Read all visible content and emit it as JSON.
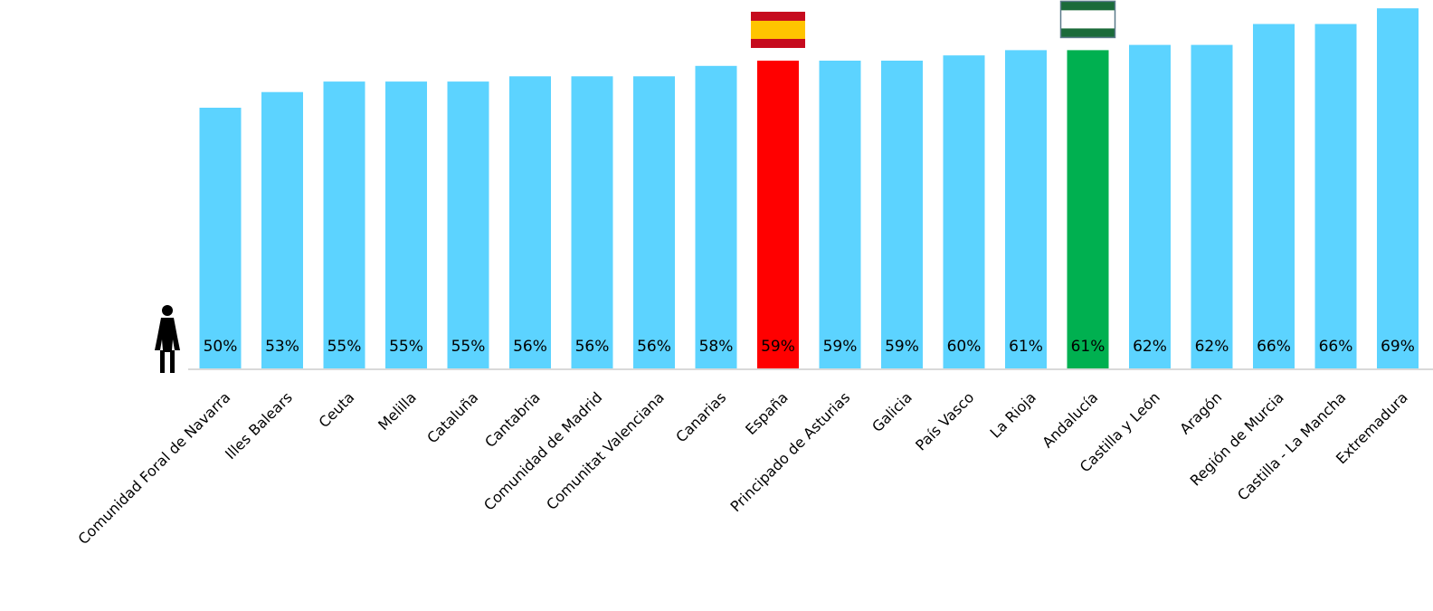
{
  "chart_data": {
    "type": "bar",
    "title": "",
    "xlabel": "",
    "ylabel": "",
    "ylim": [
      0,
      100
    ],
    "grid": false,
    "legend": "none",
    "categories": [
      "Comunidad Foral de Navarra",
      "Illes Balears",
      "Ceuta",
      "Melilla",
      "Cataluña",
      "Cantabria",
      "Comunidad de Madrid",
      "Comunitat Valenciana",
      "Canarias",
      "España",
      "Principado de Asturias",
      "Galicia",
      "País Vasco",
      "La Rioja",
      "Andalucía",
      "Castilla y León",
      "Aragón",
      "Región de Murcia",
      "Castilla - La Mancha",
      "Extremadura"
    ],
    "values": [
      50,
      53,
      55,
      55,
      55,
      56,
      56,
      56,
      58,
      59,
      59,
      59,
      60,
      61,
      61,
      62,
      62,
      66,
      66,
      69
    ],
    "value_labels": [
      "50%",
      "53%",
      "55%",
      "55%",
      "55%",
      "56%",
      "56%",
      "56%",
      "58%",
      "59%",
      "59%",
      "59%",
      "60%",
      "61%",
      "61%",
      "62%",
      "62%",
      "66%",
      "66%",
      "69%"
    ],
    "highlight": {
      "España": "#ff0000",
      "Andalucía": "#00b050"
    },
    "flag_icons": {
      "España": "spain-flag-icon",
      "Andalucía": "andalucia-flag-icon"
    },
    "axis_icon": "woman-icon"
  },
  "colors": {
    "bar": "#5cd3ff",
    "spain": "#ff0000",
    "andalucia": "#00b050",
    "axis": "#d9d9d9",
    "flag_red": "#c60b1e",
    "flag_yellow": "#ffc400",
    "flag_green": "#1b6b3a"
  }
}
